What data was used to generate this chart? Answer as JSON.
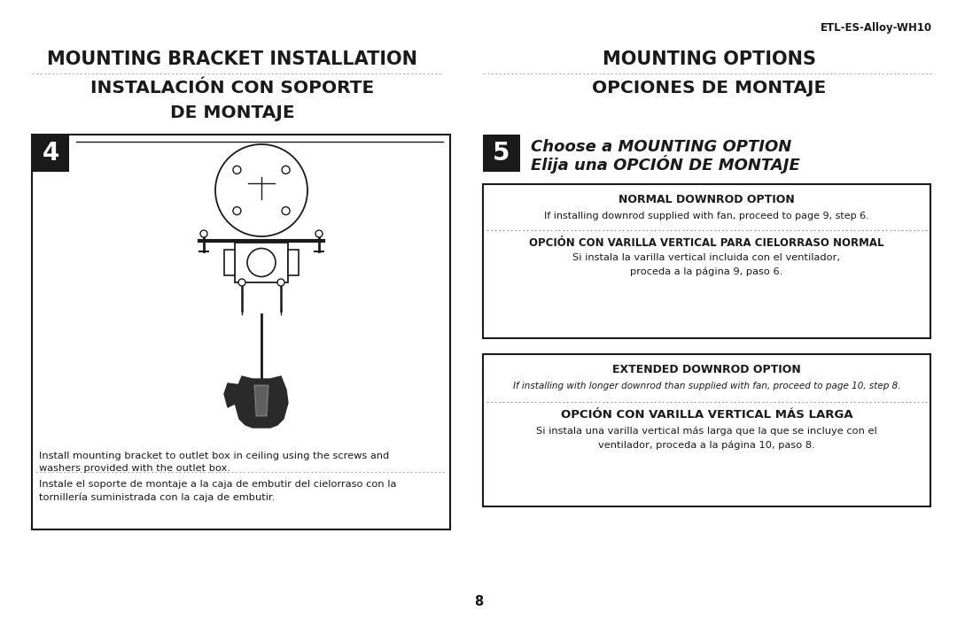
{
  "bg_color": "#ffffff",
  "page_number": "8",
  "model_number": "ETL-ES-Alloy-WH10",
  "left_title1": "MOUNTING BRACKET INSTALLATION",
  "left_title2": "INSTALACIÓN CON SOPORTE",
  "left_title3": "DE MONTAJE",
  "right_title1": "MOUNTING OPTIONS",
  "right_title2": "OPCIONES DE MONTAJE",
  "step4_label": "4",
  "step5_label": "5",
  "step5_title_line1": "Choose a MOUNTING OPTION",
  "step5_title_line2": "Elija una OPCIÓN DE MONTAJE",
  "left_caption_en": "Install mounting bracket to outlet box in ceiling using the screws and\nwashers provided with the outlet box.",
  "left_caption_es": "Instale el soporte de montaje a la caja de embutir del cielorraso con la\ntornillería suministrada con la caja de embutir.",
  "box1_title": "NORMAL DOWNROD OPTION",
  "box1_en": "If installing downrod supplied with fan, proceed to page 9, step 6.",
  "box1_es_title": "OPCIÓN CON VARILLA VERTICAL PARA CIELORRASO NORMAL",
  "box1_es1": "Si instala la varilla vertical incluida con el ventilador,",
  "box1_es2": "proceda a la página 9, paso 6.",
  "box2_title": "EXTENDED DOWNROD OPTION",
  "box2_en": "If installing with longer downrod than supplied with fan, proceed to page 10, step 8.",
  "box2_es_title": "OPCIÓN CON VARILLA VERTICAL MÁS LARGA",
  "box2_es1": "Si instala una varilla vertical más larga que la que se incluye con el",
  "box2_es2": "ventilador, proceda a la página 10, paso 8.",
  "text_color": "#1a1a1a",
  "box_border_color": "#1a1a1a",
  "step_bg_color": "#1a1a1a",
  "step_text_color": "#ffffff",
  "dotted_color": "#aaaaaa"
}
